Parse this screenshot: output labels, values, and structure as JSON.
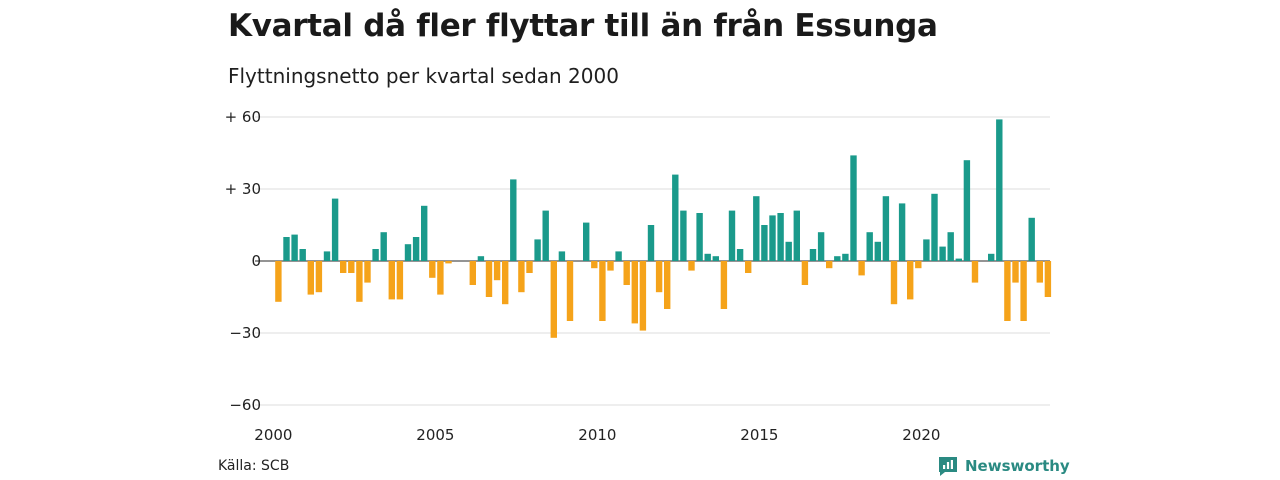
{
  "header": {
    "title": "Kvartal då fler flyttar till än från Essunga",
    "subtitle": "Flyttningsnetto per kvartal sedan 2000"
  },
  "footer": {
    "source": "Källa: SCB",
    "brand": "Newsworthy"
  },
  "colors": {
    "positive": "#1a9a8b",
    "negative": "#f5a31a",
    "grid": "#dddddd",
    "brand": "#2a8a82"
  },
  "chart_data": {
    "type": "bar",
    "x_start": "2000 Q1",
    "x_ticks": [
      "2000",
      "2005",
      "2010",
      "2015",
      "2020"
    ],
    "y_ticks": [
      {
        "value": 60,
        "label": "+ 60"
      },
      {
        "value": 30,
        "label": "+ 30"
      },
      {
        "value": 0,
        "label": "0"
      },
      {
        "value": -30,
        "label": "−30"
      },
      {
        "value": -60,
        "label": "−60"
      }
    ],
    "ylim": [
      -60,
      60
    ],
    "grid": true,
    "values": [
      -17,
      10,
      11,
      5,
      -14,
      -13,
      4,
      26,
      -5,
      -5,
      -17,
      -9,
      5,
      12,
      -16,
      -16,
      7,
      10,
      23,
      -7,
      -14,
      -1,
      0,
      0,
      -10,
      2,
      -15,
      -8,
      -18,
      34,
      -13,
      -5,
      9,
      21,
      -32,
      4,
      -25,
      0,
      16,
      -3,
      -25,
      -4,
      4,
      -10,
      -26,
      -29,
      15,
      -13,
      -20,
      36,
      21,
      -4,
      20,
      3,
      2,
      -20,
      21,
      5,
      -5,
      27,
      15,
      19,
      20,
      8,
      21,
      -10,
      5,
      12,
      -3,
      2,
      3,
      44,
      -6,
      12,
      8,
      27,
      -18,
      24,
      -16,
      -3,
      9,
      28,
      6,
      12,
      1,
      42,
      -9,
      0,
      3,
      59,
      -25,
      -9,
      -25,
      18,
      -9,
      -15
    ]
  }
}
